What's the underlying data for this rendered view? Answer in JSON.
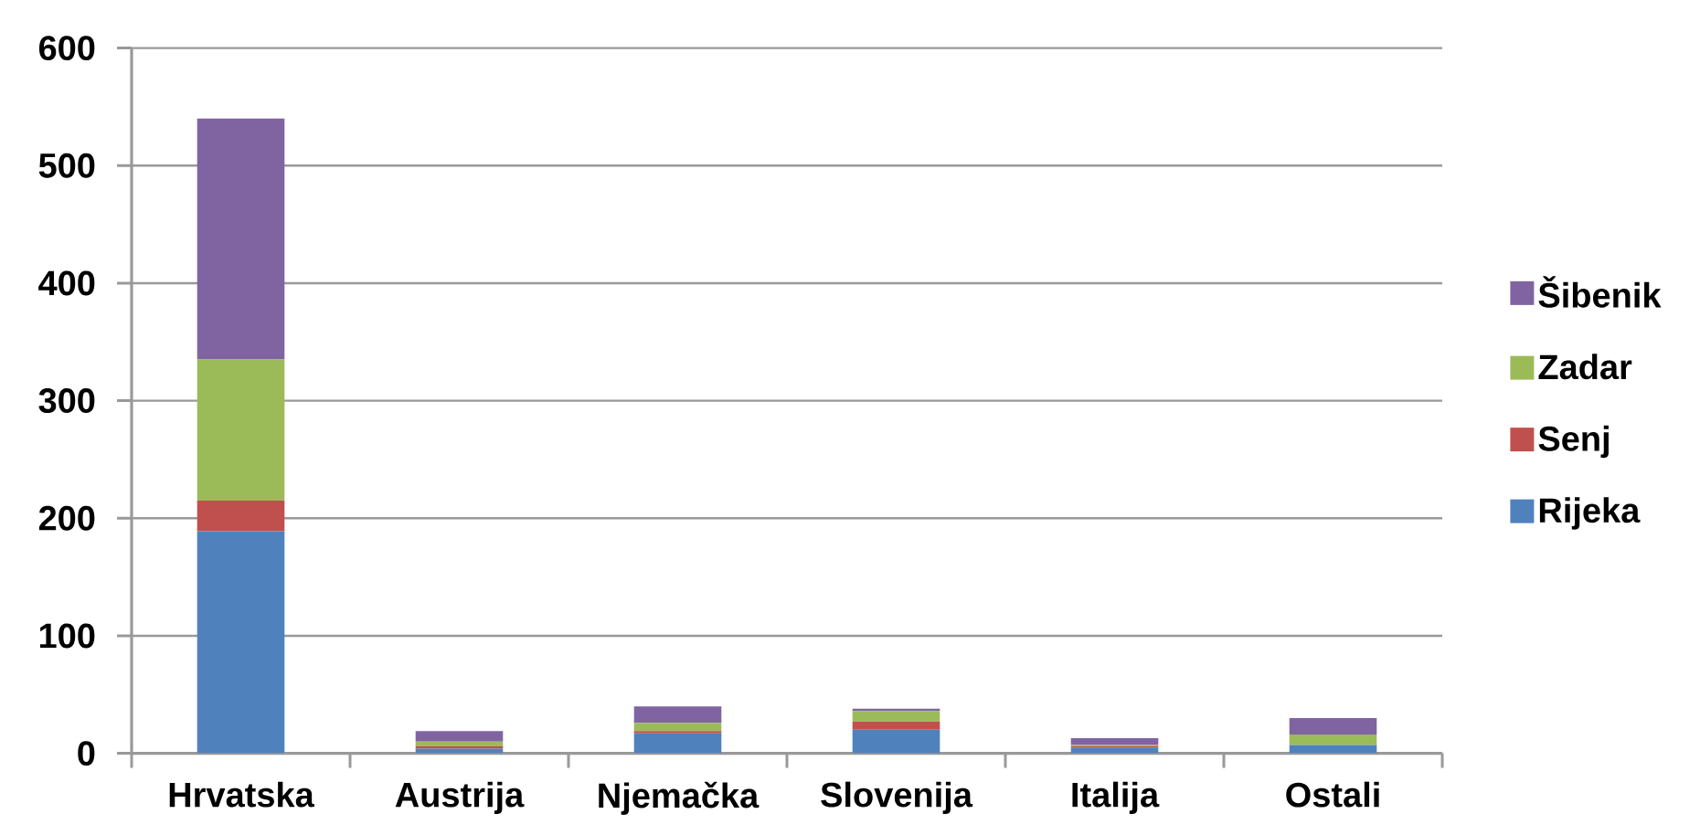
{
  "chart_data": {
    "type": "bar",
    "stacked": true,
    "categories": [
      "Hrvatska",
      "Austrija",
      "Njemačka",
      "Slovenija",
      "Italija",
      "Ostali"
    ],
    "series": [
      {
        "name": "Rijeka",
        "color": "#4f81bd",
        "values": [
          189,
          4,
          17,
          20,
          5,
          7
        ]
      },
      {
        "name": "Senj",
        "color": "#c0504d",
        "values": [
          26,
          2,
          2,
          7,
          1,
          0
        ]
      },
      {
        "name": "Zadar",
        "color": "#9bbb59",
        "values": [
          120,
          4,
          7,
          9,
          1,
          9
        ]
      },
      {
        "name": "Šibenik",
        "color": "#8064a2",
        "values": [
          205,
          9,
          14,
          2,
          6,
          14
        ]
      }
    ],
    "ylim": [
      0,
      600
    ],
    "yticks": [
      0,
      100,
      200,
      300,
      400,
      500,
      600
    ],
    "grid": "y",
    "legend": "right"
  }
}
